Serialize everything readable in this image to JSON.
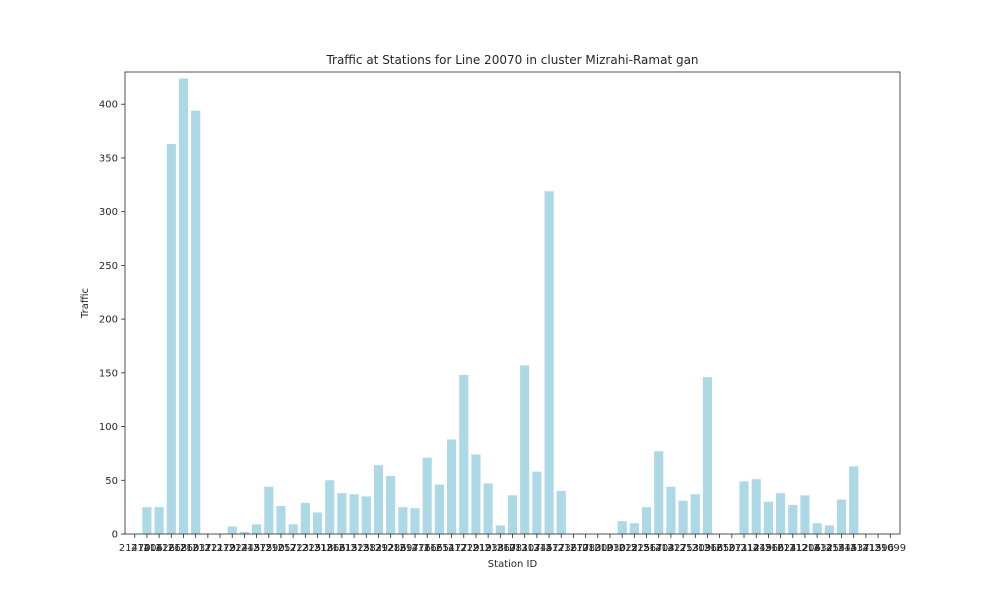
{
  "chart_data": {
    "type": "bar",
    "title": "Traffic at Stations for Line 20070 in cluster Mizrahi-Ramat gan",
    "xlabel": "Station ID",
    "ylabel": "Traffic",
    "ylim": [
      0,
      430
    ],
    "yticks": [
      0,
      50,
      100,
      150,
      200,
      250,
      300,
      350,
      400
    ],
    "bar_color": "#add8e6",
    "grid": false,
    "categories": [
      "21470",
      "21406",
      "21426",
      "21268",
      "21260",
      "21337",
      "21121",
      "21179",
      "21224",
      "21245",
      "21375",
      "21290",
      "21257",
      "21223",
      "21225",
      "21318",
      "21366",
      "21315",
      "21325",
      "21382",
      "21392",
      "21286",
      "21397",
      "21476",
      "21165",
      "21651",
      "21477",
      "21229",
      "21219",
      "21238",
      "21367",
      "21081",
      "21307",
      "21345",
      "21477",
      "21236",
      "21277",
      "21083",
      "21009",
      "21030",
      "21022",
      "21525",
      "21567",
      "21403",
      "21427",
      "21253",
      "21309",
      "21368",
      "21650",
      "21371",
      "21312",
      "21449",
      "21566",
      "21024",
      "21112",
      "21206",
      "21432",
      "21454",
      "21545",
      "21437",
      "21415",
      "21396",
      "21099"
    ],
    "values": [
      0,
      25,
      25,
      363,
      424,
      394,
      0,
      0,
      7,
      2,
      9,
      44,
      26,
      9,
      29,
      20,
      50,
      38,
      37,
      35,
      64,
      54,
      25,
      24,
      71,
      46,
      88,
      148,
      74,
      47,
      8,
      36,
      157,
      58,
      319,
      40,
      0,
      0,
      0,
      0,
      12,
      10,
      25,
      77,
      44,
      31,
      37,
      146,
      0,
      0,
      49,
      51,
      30,
      38,
      27,
      36,
      10,
      8,
      32,
      63,
      0,
      0,
      0
    ]
  }
}
